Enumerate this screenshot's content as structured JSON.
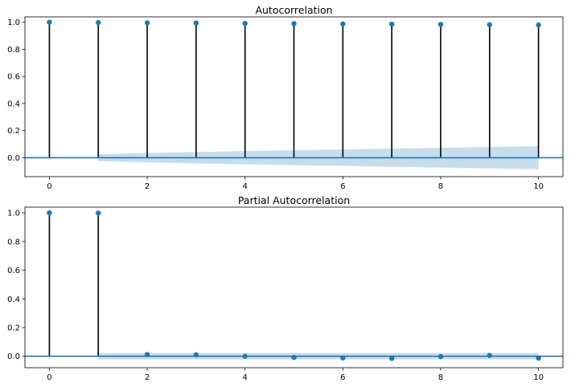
{
  "chart_data": [
    {
      "type": "stem",
      "title": "Autocorrelation",
      "xlabel": "",
      "ylabel": "",
      "x": [
        0,
        1,
        2,
        3,
        4,
        5,
        6,
        7,
        8,
        9,
        10
      ],
      "values": [
        1.0,
        0.998,
        0.996,
        0.994,
        0.992,
        0.99,
        0.988,
        0.986,
        0.984,
        0.982,
        0.98
      ],
      "xlim": [
        -0.5,
        10.5
      ],
      "ylim": [
        -0.14,
        1.04
      ],
      "xticks": [
        "0",
        "2",
        "4",
        "6",
        "8",
        "10"
      ],
      "yticks": [
        "0.0",
        "0.2",
        "0.4",
        "0.6",
        "0.8",
        "1.0"
      ],
      "confidence_band": {
        "x": [
          1,
          2,
          3,
          4,
          5,
          6,
          7,
          8,
          9,
          10
        ],
        "upper": [
          0.025,
          0.035,
          0.042,
          0.049,
          0.055,
          0.061,
          0.067,
          0.073,
          0.079,
          0.085
        ],
        "lower": [
          -0.025,
          -0.035,
          -0.042,
          -0.049,
          -0.055,
          -0.061,
          -0.067,
          -0.073,
          -0.079,
          -0.085
        ]
      },
      "grid": false,
      "colors": {
        "marker": "#1f77b4",
        "stem": "#000000",
        "band": "#1f77b4"
      }
    },
    {
      "type": "stem",
      "title": "Partial Autocorrelation",
      "xlabel": "",
      "ylabel": "",
      "x": [
        0,
        1,
        2,
        3,
        4,
        5,
        6,
        7,
        8,
        9,
        10
      ],
      "values": [
        1.0,
        0.999,
        0.012,
        0.01,
        0.0,
        -0.008,
        -0.012,
        -0.015,
        -0.002,
        0.006,
        -0.013
      ],
      "xlim": [
        -0.5,
        10.5
      ],
      "ylim": [
        -0.08,
        1.04
      ],
      "xticks": [
        "0",
        "2",
        "4",
        "6",
        "8",
        "10"
      ],
      "yticks": [
        "0.0",
        "0.2",
        "0.4",
        "0.6",
        "0.8",
        "1.0"
      ],
      "confidence_band": {
        "x": [
          1,
          10
        ],
        "upper": [
          0.022,
          0.022
        ],
        "lower": [
          -0.022,
          -0.022
        ]
      },
      "grid": false,
      "colors": {
        "marker": "#1f77b4",
        "stem": "#000000",
        "band": "#1f77b4"
      }
    }
  ]
}
